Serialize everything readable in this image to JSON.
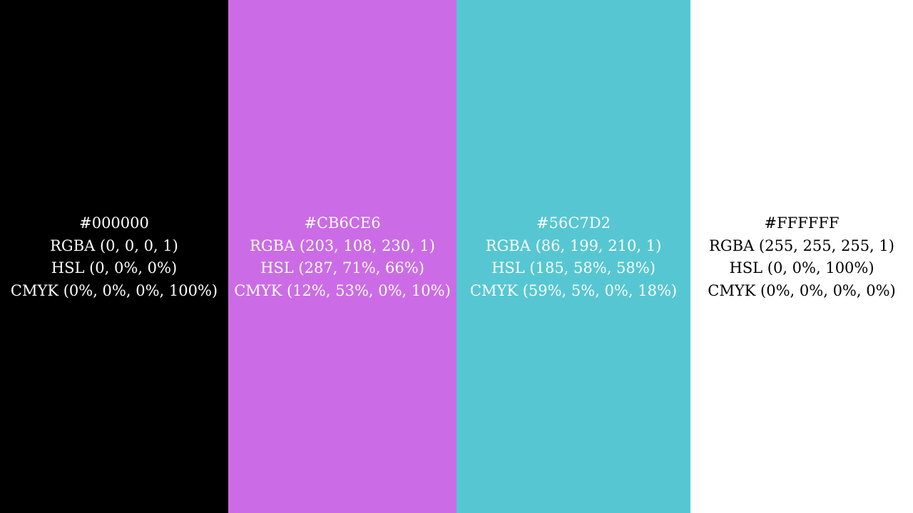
{
  "swatches": [
    {
      "hex": "#000000",
      "rgba": "RGBA (0, 0, 0, 1)",
      "hsl": "HSL (0, 0%, 0%)",
      "cmyk": "CMYK (0%, 0%, 0%, 100%)",
      "background": "#000000",
      "text_color": "#FFFFFF"
    },
    {
      "hex": "#CB6CE6",
      "rgba": "RGBA (203, 108, 230, 1)",
      "hsl": "HSL (287, 71%, 66%)",
      "cmyk": "CMYK (12%, 53%, 0%, 10%)",
      "background": "#CB6CE6",
      "text_color": "#FFFFFF"
    },
    {
      "hex": "#56C7D2",
      "rgba": "RGBA (86, 199, 210, 1)",
      "hsl": "HSL (185, 58%, 58%)",
      "cmyk": "CMYK (59%, 5%, 0%, 18%)",
      "background": "#56C7D2",
      "text_color": "#FFFFFF"
    },
    {
      "hex": "#FFFFFF",
      "rgba": "RGBA (255, 255, 255, 1)",
      "hsl": "HSL (0, 0%, 100%)",
      "cmyk": "CMYK (0%, 0%, 0%, 0%)",
      "background": "#FFFFFF",
      "text_color": "#000000"
    }
  ]
}
